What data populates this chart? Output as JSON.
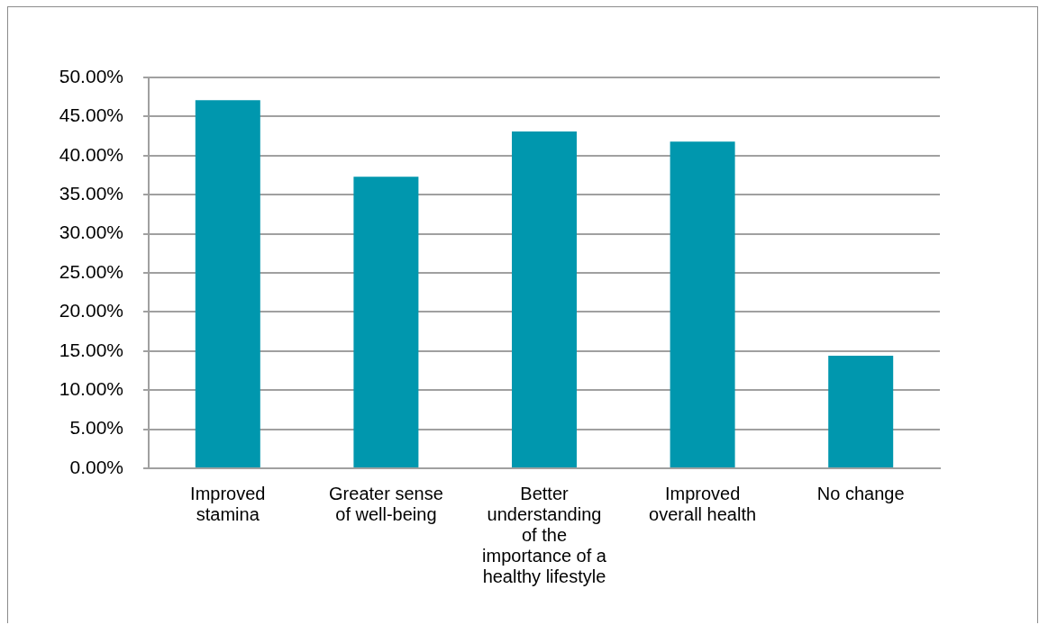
{
  "chart_data": {
    "type": "bar",
    "categories": [
      "Improved stamina",
      "Greater sense of well-being",
      "Better understanding of the importance of a healthy lifestyle",
      "Improved overall health",
      "No change"
    ],
    "values": [
      47.1,
      37.3,
      43.1,
      41.8,
      14.4
    ],
    "color": "#0097ae",
    "ylim": [
      0,
      50
    ],
    "yticks": [
      {
        "value": 0,
        "label": "0.00%"
      },
      {
        "value": 5,
        "label": "5.00%"
      },
      {
        "value": 10,
        "label": "10.00%"
      },
      {
        "value": 15,
        "label": "15.00%"
      },
      {
        "value": 20,
        "label": "20.00%"
      },
      {
        "value": 25,
        "label": "25.00%"
      },
      {
        "value": 30,
        "label": "30.00%"
      },
      {
        "value": 35,
        "label": "35.00%"
      },
      {
        "value": 40,
        "label": "40.00%"
      },
      {
        "value": 45,
        "label": "45.00%"
      },
      {
        "value": 50,
        "label": "50.00%"
      }
    ],
    "grid": "y"
  }
}
